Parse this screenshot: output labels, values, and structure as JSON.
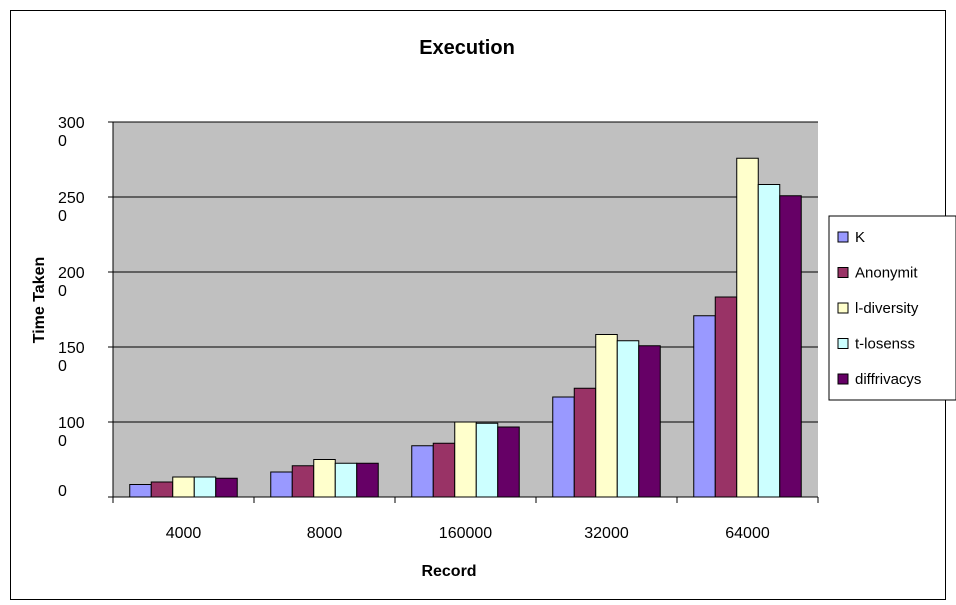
{
  "chart_data": {
    "type": "bar",
    "title": "Execution",
    "xlabel": "Record",
    "ylabel": "Time Taken",
    "categories": [
      "4000",
      "8000",
      "160000",
      "32000",
      "64000"
    ],
    "y_tick_labels": [
      [
        "0"
      ],
      [
        "100",
        "0"
      ],
      [
        "150",
        "0"
      ],
      [
        "200",
        "0"
      ],
      [
        "250",
        "0"
      ],
      [
        "300",
        "0"
      ]
    ],
    "ylim": [
      0,
      3000
    ],
    "grid": true,
    "legend_position": "right",
    "plot_background": "#c0c0c0",
    "series": [
      {
        "name": "K",
        "color": "#9999ff",
        "values": [
          100,
          200,
          410,
          800,
          1450
        ]
      },
      {
        "name": "Anonymit",
        "color": "#993366",
        "values": [
          120,
          250,
          430,
          870,
          1600
        ]
      },
      {
        "name": "l-diversity",
        "color": "#ffffcc",
        "values": [
          160,
          300,
          600,
          1300,
          2710
        ]
      },
      {
        "name": "t-losenss",
        "color": "#ccffff",
        "values": [
          160,
          270,
          590,
          1250,
          2500
        ]
      },
      {
        "name": "diffrivacys",
        "color": "#660066",
        "values": [
          150,
          270,
          560,
          1210,
          2410
        ]
      }
    ]
  }
}
